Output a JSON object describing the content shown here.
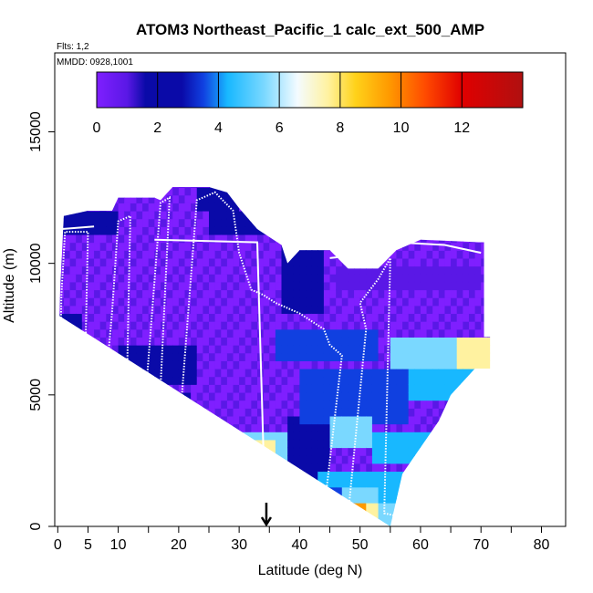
{
  "chart_data": {
    "type": "heatmap",
    "title": "ATOM3 Northeast_Pacific_1 calc_ext_500_AMP",
    "flights_label": "Flts: 1,2",
    "date_label": "MMDD: 0928,1001",
    "xlabel": "Latitude (deg N)",
    "ylabel": "Altitude (m)",
    "xlim": [
      -0.5,
      84
    ],
    "ylim": [
      0,
      18000
    ],
    "x_ticks": [
      0,
      5,
      10,
      20,
      30,
      40,
      50,
      60,
      70,
      80
    ],
    "x_minor_ticks": [
      15,
      25,
      35,
      45,
      55,
      65,
      75
    ],
    "y_ticks": [
      0,
      5000,
      10000,
      15000
    ],
    "colorbar": {
      "min": 0,
      "max": 14,
      "ticks": [
        0,
        2,
        4,
        6,
        8,
        10,
        12
      ]
    },
    "colors": {
      "c0": "#7f1fff",
      "c1": "#5a18e6",
      "c2": "#0a0aa8",
      "c3": "#1040e0",
      "c4": "#18b8ff",
      "c5": "#7ad8ff",
      "c6": "#f4fbff",
      "c7": "#fff2a0",
      "c8": "#ffd21a",
      "c9": "#ff9a00",
      "c10": "#ff4a00",
      "c11": "#e00000",
      "c12": "#b01010",
      "track": "#ffffff",
      "arrow": "#000000"
    },
    "outline_left": [
      [
        0.3,
        8000
      ],
      [
        0.4,
        9000
      ],
      [
        1,
        11800
      ],
      [
        5,
        12000
      ],
      [
        9,
        12000
      ],
      [
        10,
        12500
      ],
      [
        16,
        12500
      ],
      [
        17,
        12400
      ],
      [
        19,
        12900
      ],
      [
        25,
        12900
      ],
      [
        28,
        12700
      ],
      [
        30,
        12100
      ],
      [
        33,
        11300
      ],
      [
        37,
        10700
      ],
      [
        38,
        10000
      ],
      [
        40,
        10500
      ],
      [
        45,
        10500
      ],
      [
        48,
        9800
      ],
      [
        53,
        9800
      ],
      [
        56,
        10500
      ],
      [
        60,
        10900
      ],
      [
        70,
        10800
      ]
    ],
    "outline_right": [
      [
        70.5,
        10800
      ],
      [
        70.5,
        7200
      ],
      [
        71.5,
        7200
      ],
      [
        71.5,
        6000
      ],
      [
        69,
        6000
      ],
      [
        65,
        5000
      ],
      [
        63,
        4000
      ],
      [
        60,
        3000
      ],
      [
        57,
        2000
      ],
      [
        56,
        1000
      ],
      [
        55,
        0
      ]
    ],
    "flight_track": [
      [
        0,
        500
      ],
      [
        0.6,
        8800
      ],
      [
        1.2,
        11200
      ],
      [
        5,
        11200
      ],
      [
        4,
        500
      ],
      [
        6,
        400
      ],
      [
        9,
        8200
      ],
      [
        10,
        11600
      ],
      [
        12,
        11800
      ],
      [
        11,
        500
      ],
      [
        13,
        400
      ],
      [
        17,
        12300
      ],
      [
        18.5,
        12500
      ],
      [
        16,
        500
      ],
      [
        19,
        400
      ],
      [
        23,
        12400
      ],
      [
        26,
        12700
      ],
      [
        29,
        12000
      ],
      [
        30,
        10400
      ],
      [
        32,
        9000
      ],
      [
        34,
        8800
      ],
      [
        36,
        8500
      ],
      [
        40,
        8100
      ],
      [
        44,
        7500
      ],
      [
        45,
        6900
      ],
      [
        47,
        6500
      ],
      [
        44,
        500
      ],
      [
        48,
        400
      ],
      [
        51,
        7500
      ],
      [
        50,
        8500
      ],
      [
        53,
        9400
      ],
      [
        55,
        10200
      ],
      [
        54,
        500
      ],
      [
        56,
        400
      ],
      [
        57.5,
        1500
      ]
    ],
    "flight_track_segments": [
      [
        [
          16,
          10900
        ],
        [
          33,
          10800
        ],
        [
          34,
          3000
        ]
      ],
      [
        [
          0.5,
          11300
        ],
        [
          6,
          11400
        ]
      ],
      [
        [
          45,
          10200
        ],
        [
          49,
          10300
        ]
      ],
      [
        [
          56,
          10800
        ],
        [
          64,
          10700
        ],
        [
          70,
          10400
        ]
      ]
    ],
    "arrow": {
      "x": 34.5,
      "y_from": 900,
      "y_to": 0
    }
  }
}
